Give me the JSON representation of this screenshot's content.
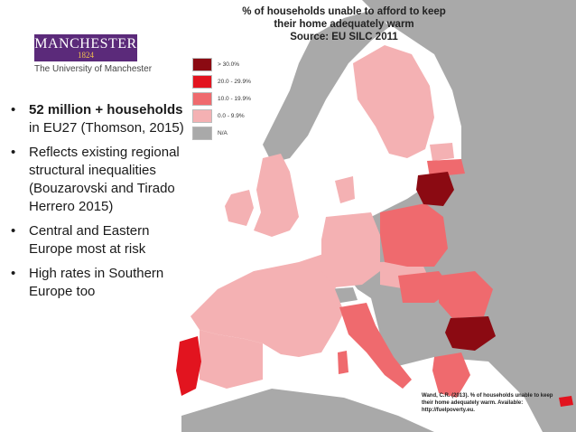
{
  "logo": {
    "name": "MANCHESTER",
    "year": "1824",
    "subtitle": "The University of Manchester"
  },
  "map": {
    "title_line1": "% of households unable to afford to keep",
    "title_line2": "their home adequately warm",
    "title_line3": "Source: EU SILC 2011",
    "legend": [
      {
        "label": "> 30.0%",
        "color": "#8b0a12"
      },
      {
        "label": "20.0 - 29.9%",
        "color": "#e2141f"
      },
      {
        "label": "10.0 - 19.9%",
        "color": "#ef6a6e"
      },
      {
        "label": "0.0 - 9.9%",
        "color": "#f4b1b3"
      },
      {
        "label": "N/A",
        "color": "#a9a9a9"
      }
    ],
    "citation": "Wand, C.R. (2013). % of households unable to keep their home adequately warm. Available: http://fuelpoverty.eu.",
    "colors": {
      "sea": "#ffffff",
      "na": "#a9a9a9",
      "low": "#f4b1b3",
      "mid": "#ef6a6e",
      "high": "#e2141f",
      "veryhigh": "#8b0a12"
    }
  },
  "bullets": [
    {
      "bold": "52 million + households",
      "text": " in EU27 (Thomson, 2015)"
    },
    {
      "bold": "",
      "text": "Reflects existing regional structural inequalities (Bouzarovski and Tirado Herrero 2015)"
    },
    {
      "bold": "",
      "text": "Central and Eastern Europe most at risk"
    },
    {
      "bold": "",
      "text": "High rates in Southern Europe too"
    }
  ],
  "bullet_char": "•"
}
